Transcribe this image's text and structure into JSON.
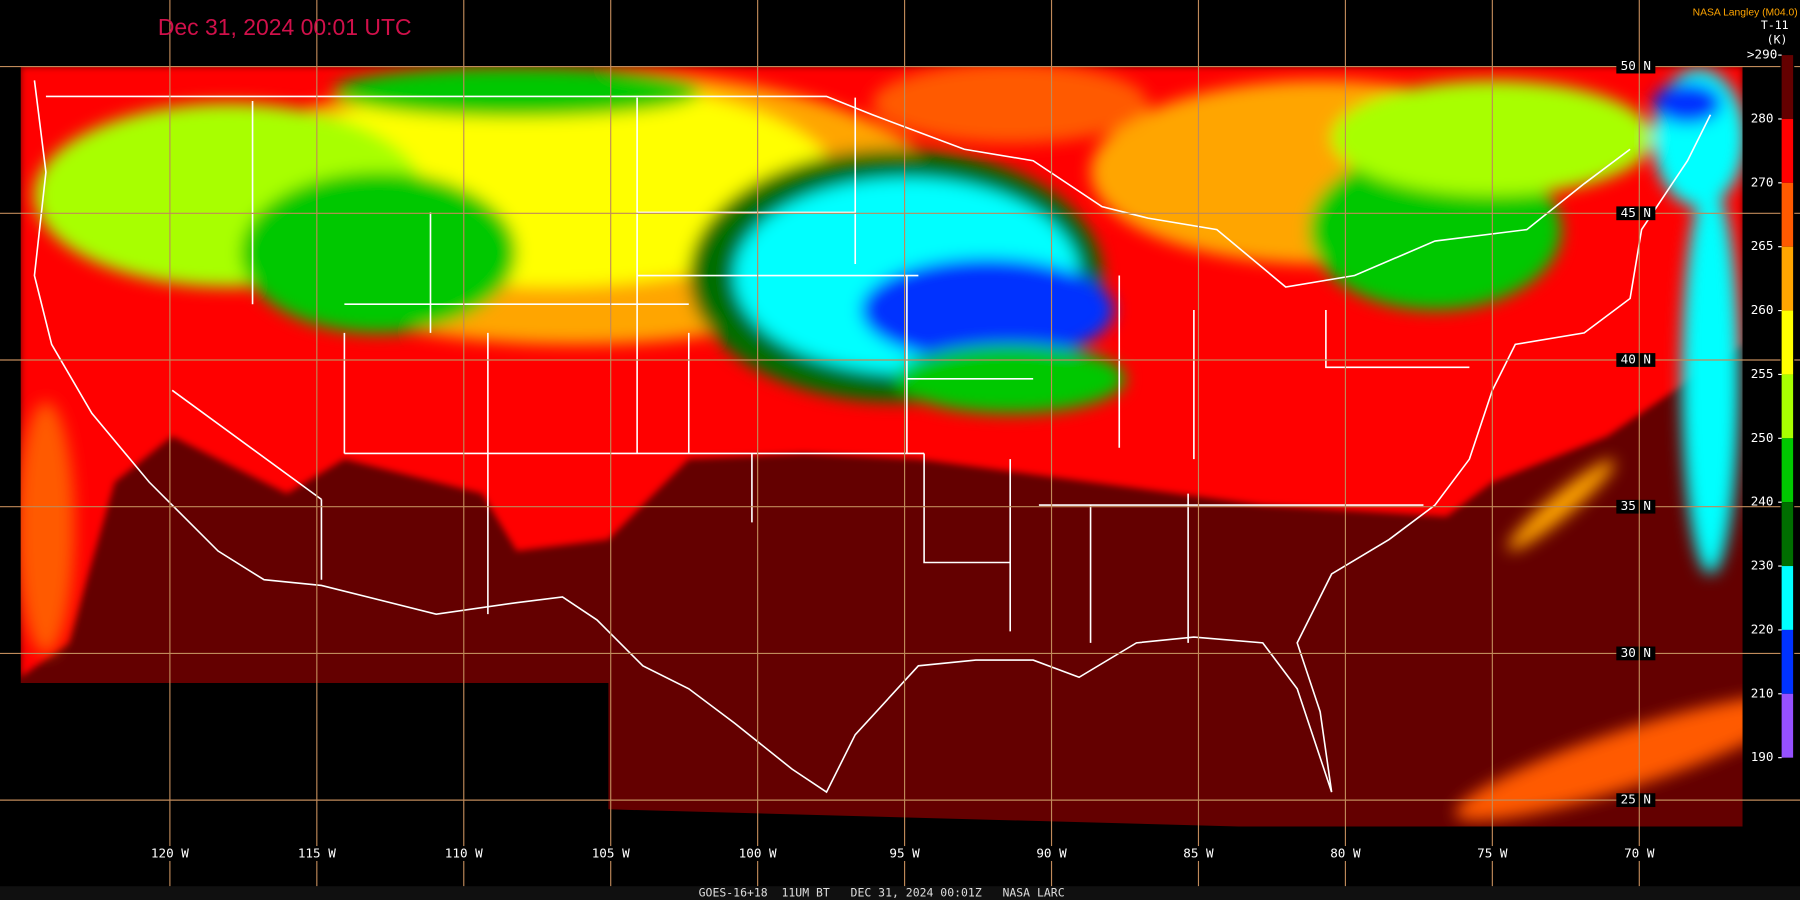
{
  "header": {
    "title": "Dec 31, 2024 00:01 UTC",
    "credit": "NASA Langley (M04.0)"
  },
  "legend": {
    "title": "T-11",
    "unit": "(K)",
    "ticks": [
      {
        "value": 290,
        "label": ">290"
      },
      280,
      270,
      265,
      260,
      255,
      250,
      240,
      230,
      220,
      210,
      190
    ],
    "colors": [
      "#640000",
      "#ff0000",
      "#ff5a00",
      "#ffa500",
      "#ffff00",
      "#a8ff00",
      "#00c800",
      "#006e00",
      "#00ffff",
      "#0032ff",
      "#9650ff"
    ]
  },
  "grid": {
    "latitudes": [
      "50 N",
      "45 N",
      "40 N",
      "35 N",
      "30 N",
      "25 N"
    ],
    "longitudes": [
      "120 W",
      "115 W",
      "110 W",
      "105 W",
      "100 W",
      "95 W",
      "90 W",
      "85 W",
      "80 W",
      "75 W",
      "70 W"
    ]
  },
  "footer": "GOES-16+18  11UM BT   DEC 31, 2024 00:01Z   NASA LARC"
}
